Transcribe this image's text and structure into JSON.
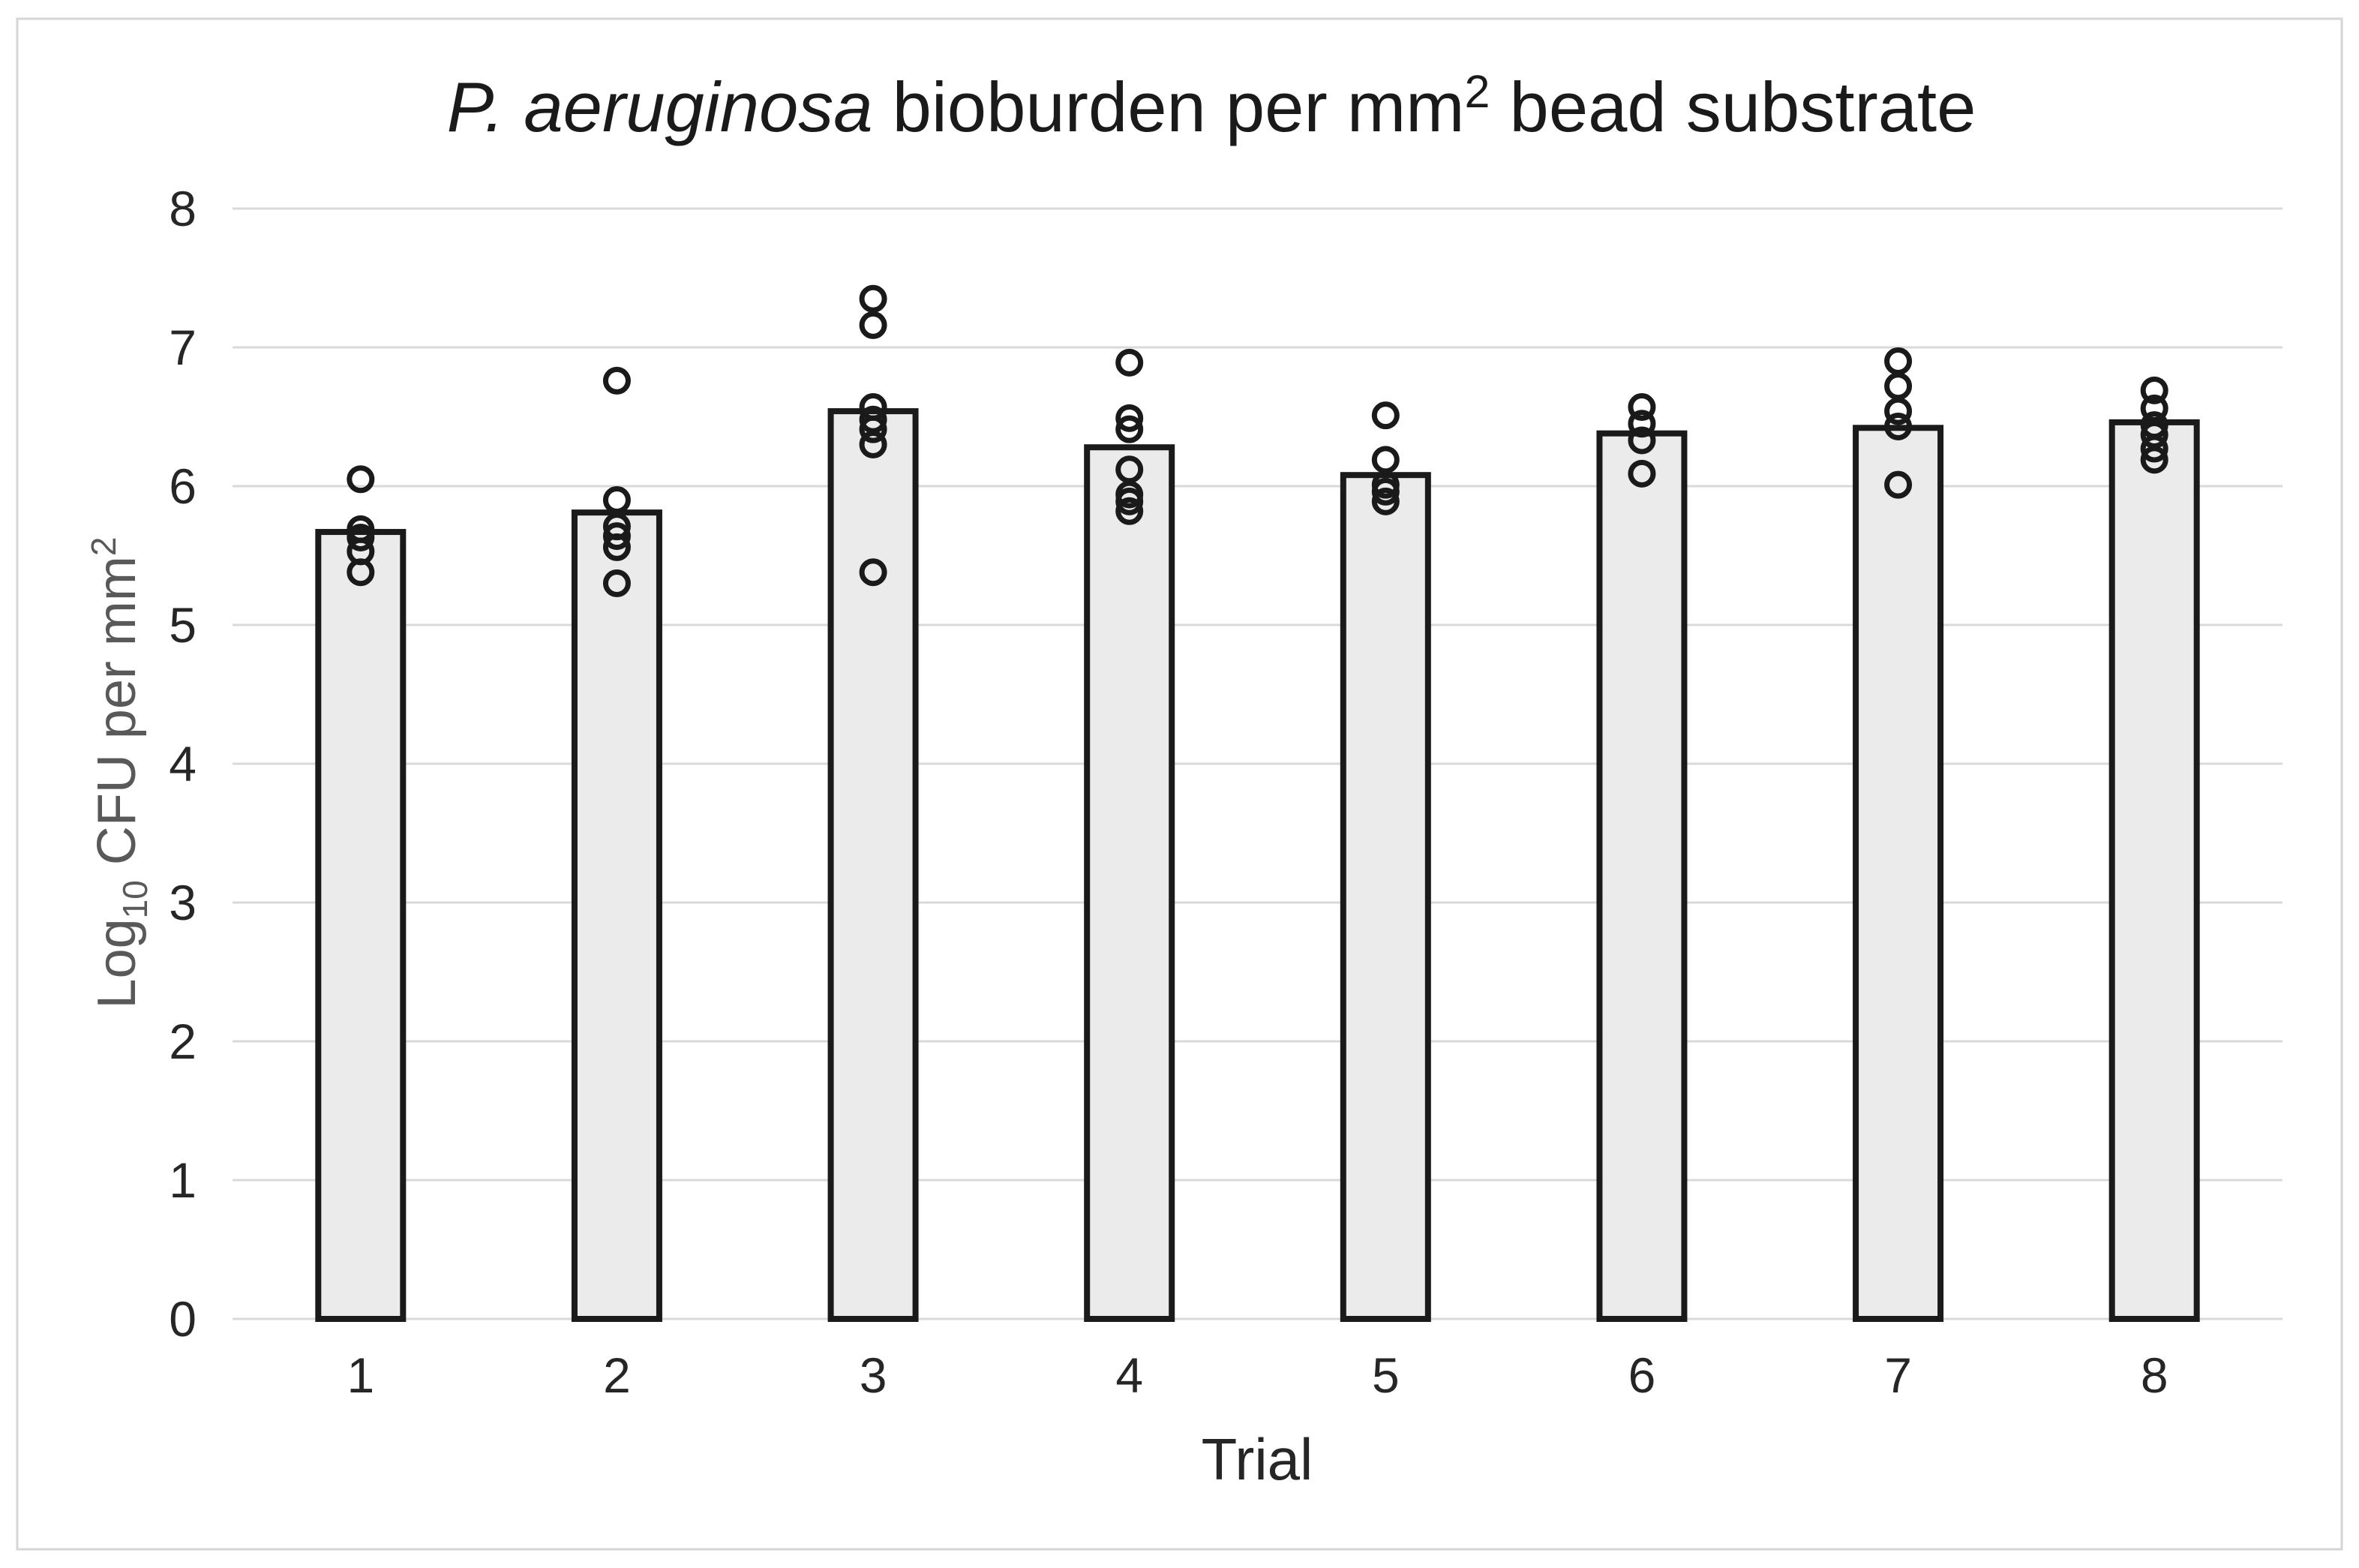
{
  "figure": {
    "background": "#ffffff",
    "border_color": "#d6d6d6"
  },
  "chart_data": {
    "type": "bar",
    "subtype": "bar-with-overlaid-points",
    "title": {
      "plain": "P. aeruginosa bioburden per mm² bead substrate",
      "italic_part": "P. aeruginosa",
      "pre_sup": " bioburden per mm",
      "sup": "2",
      "post_sup": " bead substrate"
    },
    "xlabel": "Trial",
    "ylabel": {
      "plain": "Log₁₀ CFU per mm²",
      "pre_sub": "Log",
      "sub": "10",
      "mid": " CFU per mm",
      "sup": "2"
    },
    "categories": [
      "1",
      "2",
      "3",
      "4",
      "5",
      "6",
      "7",
      "8"
    ],
    "bar_values": [
      5.67,
      5.81,
      6.54,
      6.28,
      6.08,
      6.38,
      6.42,
      6.46
    ],
    "points": [
      [
        6.05,
        5.69,
        5.63,
        5.53,
        5.38
      ],
      [
        6.76,
        5.9,
        5.71,
        5.64,
        5.56,
        5.3
      ],
      [
        7.35,
        7.16,
        6.57,
        6.48,
        6.41,
        6.3,
        5.38
      ],
      [
        6.89,
        6.49,
        6.41,
        6.12,
        5.94,
        5.89,
        5.82
      ],
      [
        6.51,
        6.19,
        6.01,
        5.96,
        5.89
      ],
      [
        6.57,
        6.45,
        6.33,
        6.09
      ],
      [
        6.9,
        6.72,
        6.54,
        6.43,
        6.01
      ],
      [
        6.69,
        6.56,
        6.44,
        6.37,
        6.27,
        6.19
      ]
    ],
    "ylim": [
      0,
      8
    ],
    "yticks": [
      0,
      1,
      2,
      3,
      4,
      5,
      6,
      7,
      8
    ],
    "grid": true,
    "legend": "none",
    "colors": {
      "bar_fill": "#ebebeb",
      "bar_stroke": "#1a1a1a",
      "point_stroke": "#1a1a1a",
      "gridline": "#d9d9d9",
      "axis_line": "#d9d9d9",
      "tick_label": "#262626",
      "title": "#1a1a1a",
      "xlabel": "#262626",
      "ylabel": "#595959"
    }
  }
}
